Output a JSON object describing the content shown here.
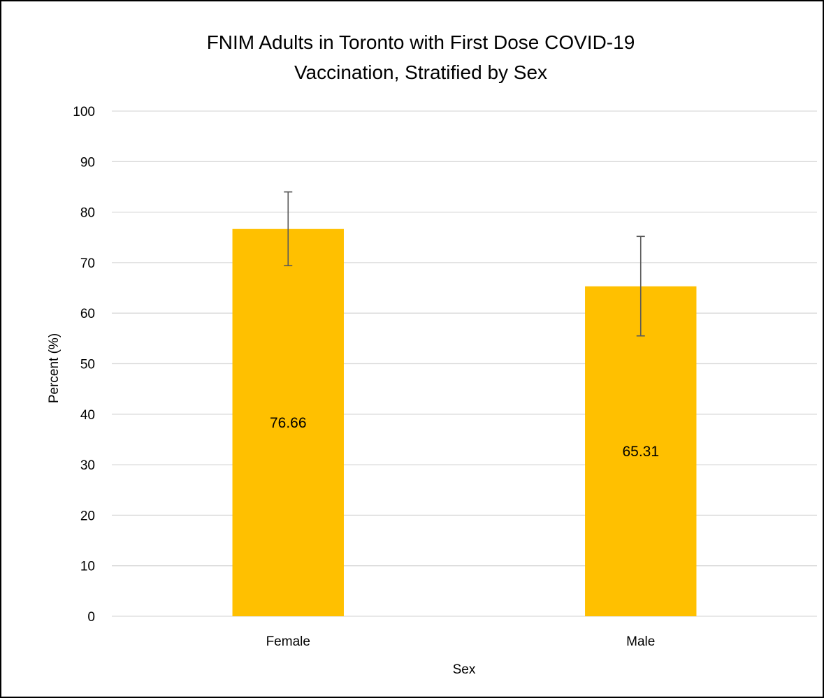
{
  "chart_data": {
    "type": "bar",
    "title_lines": [
      "FNIM Adults in Toronto with First Dose COVID-19",
      "Vaccination, Stratified by Sex"
    ],
    "xlabel": "Sex",
    "ylabel": "Percent (%)",
    "categories": [
      "Female",
      "Male"
    ],
    "values": [
      76.66,
      65.31
    ],
    "data_labels": [
      "76.66",
      "65.31"
    ],
    "error_bars": [
      {
        "low": 69.4,
        "high": 84.0
      },
      {
        "low": 55.5,
        "high": 75.2
      }
    ],
    "ylim": [
      0,
      100
    ],
    "yticks": [
      0,
      10,
      20,
      30,
      40,
      50,
      60,
      70,
      80,
      90,
      100
    ],
    "grid": true,
    "legend": "none",
    "colors": {
      "bar": "#FFC000",
      "gridline": "#D9D9D9",
      "error_bar": "#595959",
      "frame": "#000000"
    }
  }
}
